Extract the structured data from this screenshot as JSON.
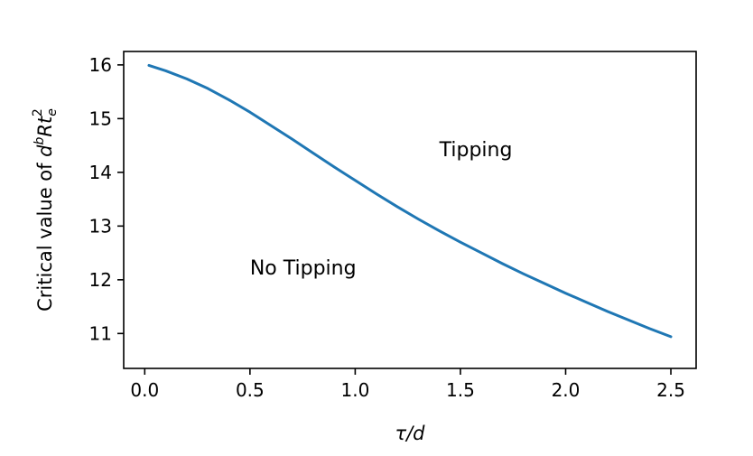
{
  "chart_data": {
    "type": "line",
    "title": "",
    "xlabel": "τ/d",
    "ylabel": {
      "prefix": "Critical value of ",
      "d": "d",
      "b": "b",
      "Rt": "Rt",
      "e": "e",
      "sq": "2"
    },
    "xlim": [
      -0.1,
      2.62
    ],
    "ylim": [
      10.35,
      16.25
    ],
    "x_ticks": [
      "0.0",
      "0.5",
      "1.0",
      "1.5",
      "2.0",
      "2.5"
    ],
    "y_ticks": [
      "11",
      "12",
      "13",
      "14",
      "15",
      "16"
    ],
    "grid": false,
    "legend": "none",
    "series": [
      {
        "color": "#1f77b4",
        "x": [
          0.02,
          0.1,
          0.2,
          0.3,
          0.4,
          0.5,
          0.6,
          0.7,
          0.8,
          0.9,
          1.0,
          1.1,
          1.2,
          1.3,
          1.4,
          1.5,
          1.6,
          1.7,
          1.8,
          1.9,
          2.0,
          2.1,
          2.2,
          2.3,
          2.4,
          2.5
        ],
        "y": [
          15.99,
          15.89,
          15.74,
          15.56,
          15.35,
          15.12,
          14.87,
          14.62,
          14.36,
          14.1,
          13.85,
          13.6,
          13.36,
          13.13,
          12.91,
          12.7,
          12.5,
          12.3,
          12.11,
          11.93,
          11.75,
          11.58,
          11.41,
          11.25,
          11.09,
          10.94
        ]
      }
    ],
    "annotations": [
      {
        "text": "Tipping",
        "x": 1.4,
        "y": 14.3
      },
      {
        "text": "No Tipping",
        "x": 0.5,
        "y": 12.1
      }
    ]
  }
}
